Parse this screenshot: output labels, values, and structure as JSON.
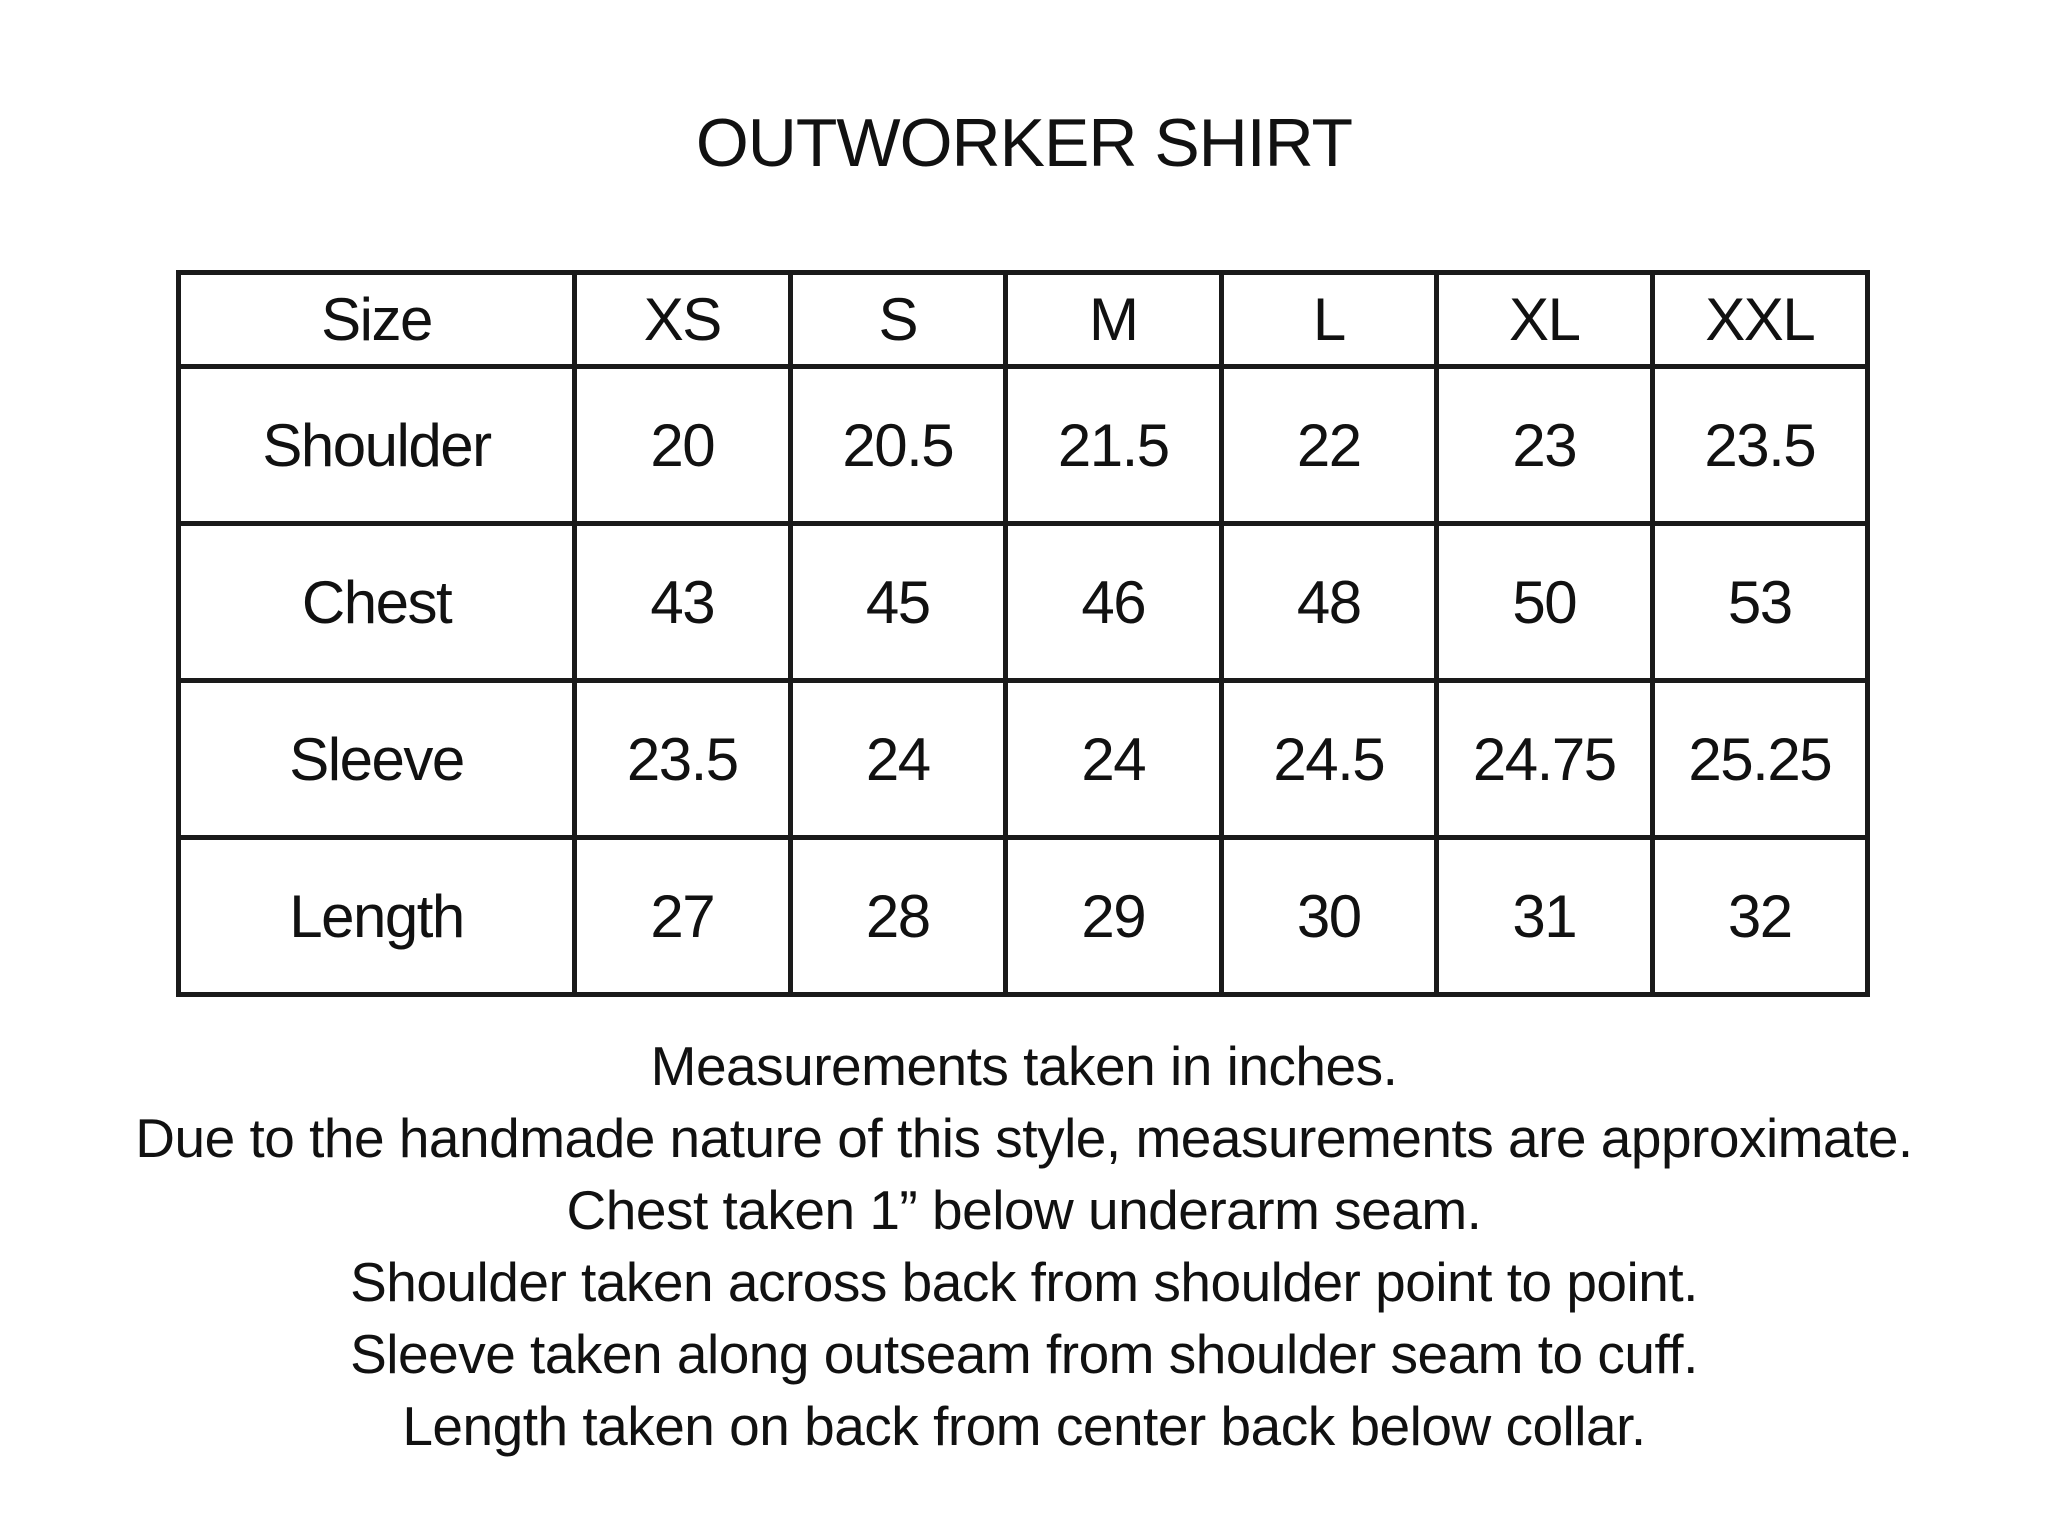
{
  "title": "OUTWORKER SHIRT",
  "table": {
    "headers": [
      "Size",
      "XS",
      "S",
      "M",
      "L",
      "XL",
      "XXL"
    ],
    "rows": [
      [
        "Shoulder",
        "20",
        "20.5",
        "21.5",
        "22",
        "23",
        "23.5"
      ],
      [
        "Chest",
        "43",
        "45",
        "46",
        "48",
        "50",
        "53"
      ],
      [
        "Sleeve",
        "23.5",
        "24",
        "24",
        "24.5",
        "24.75",
        "25.25"
      ],
      [
        "Length",
        "27",
        "28",
        "29",
        "30",
        "31",
        "32"
      ]
    ]
  },
  "notes": [
    "Measurements taken in inches.",
    "Due to the handmade nature of this style, measurements are approximate.",
    "Chest taken 1” below underarm seam.",
    "Shoulder taken across back from shoulder point to point.",
    "Sleeve taken along outseam from shoulder seam to cuff.",
    "Length taken on back from center back below collar."
  ]
}
